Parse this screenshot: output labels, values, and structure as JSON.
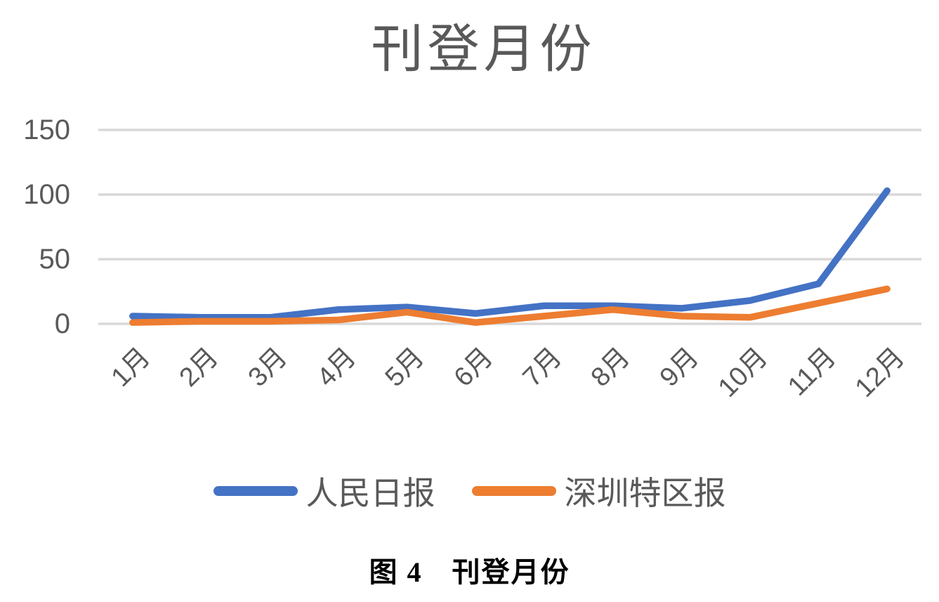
{
  "title": "刊登月份",
  "caption": "图 4　刊登月份",
  "colors": {
    "series1": "#4472C4",
    "series2": "#ED7D31",
    "gridline": "#D9D9D9",
    "axis_text": "#595959",
    "title_text": "#595959",
    "caption_text": "#000000",
    "background": "#FFFFFF"
  },
  "chart_data": {
    "type": "line",
    "title": "刊登月份",
    "categories": [
      "1月",
      "2月",
      "3月",
      "4月",
      "5月",
      "6月",
      "7月",
      "8月",
      "9月",
      "10月",
      "11月",
      "12月"
    ],
    "series": [
      {
        "name": "人民日报",
        "color": "#4472C4",
        "values": [
          6,
          5,
          5,
          11,
          13,
          8,
          14,
          14,
          12,
          18,
          31,
          103
        ]
      },
      {
        "name": "深圳特区报",
        "color": "#ED7D31",
        "values": [
          1,
          2,
          2,
          3,
          9,
          1,
          6,
          11,
          6,
          5,
          16,
          27
        ]
      }
    ],
    "xlabel": "",
    "ylabel": "",
    "ylim": [
      0,
      150
    ],
    "yticks": [
      0,
      50,
      100,
      150
    ],
    "grid": "horizontal",
    "legend_position": "bottom",
    "line_style": "solid, rounded caps and joins"
  }
}
